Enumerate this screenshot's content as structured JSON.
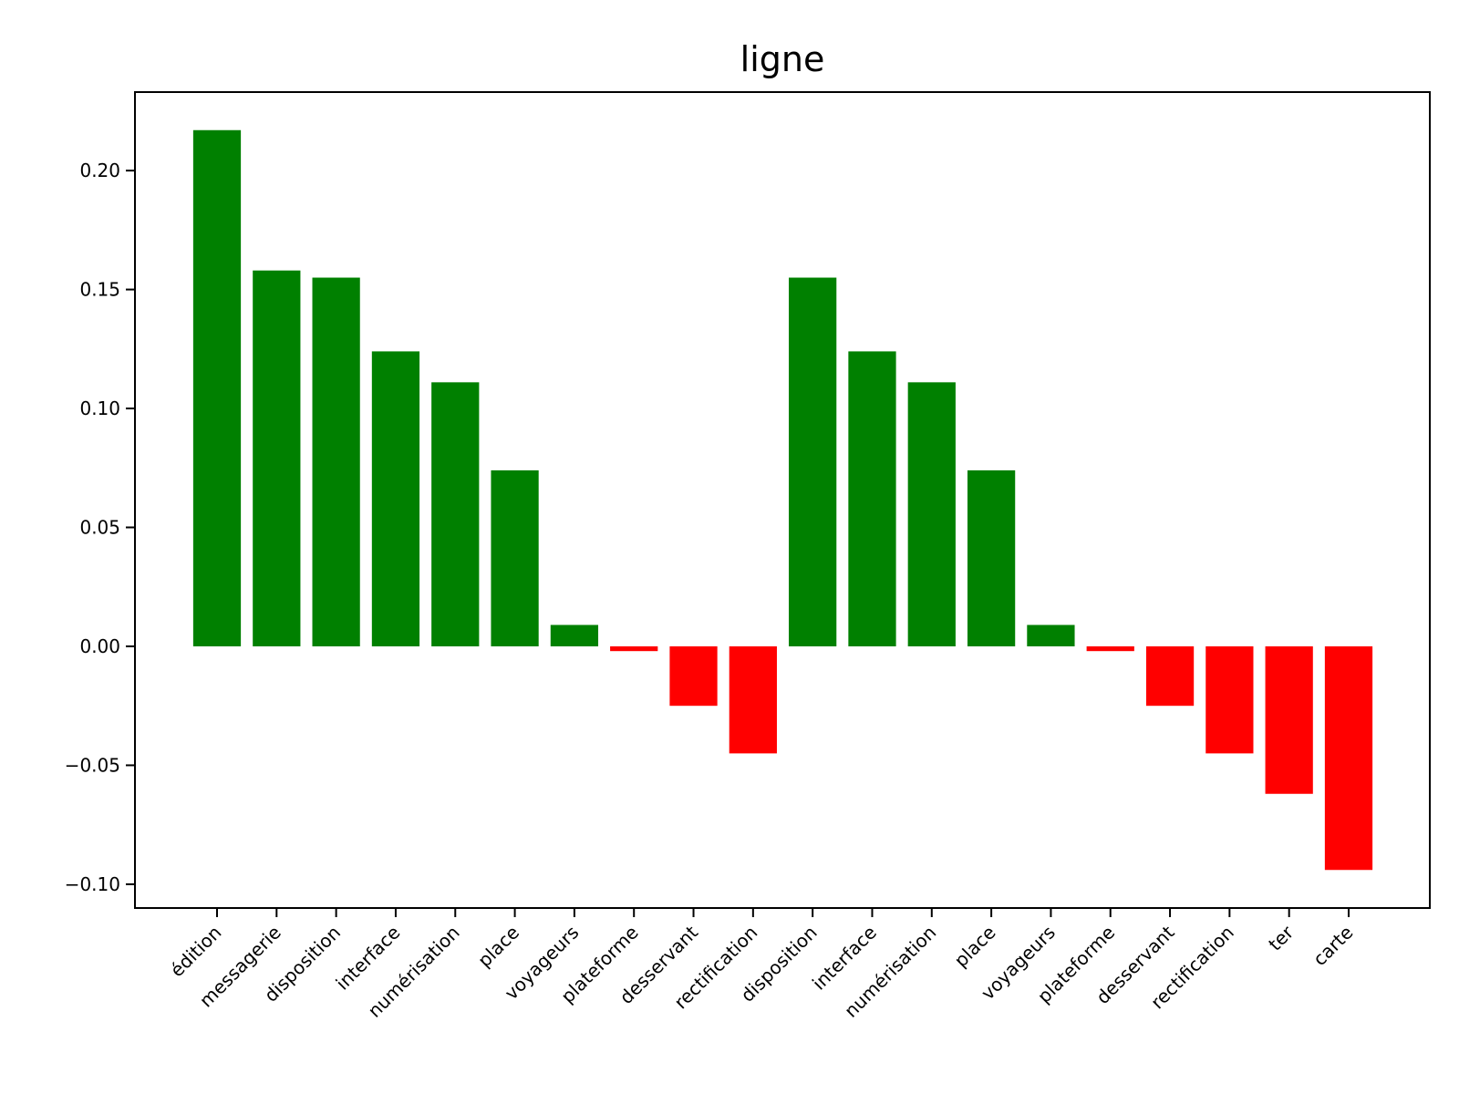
{
  "chart_data": {
    "type": "bar",
    "title": "ligne",
    "xlabel": "",
    "ylabel": "",
    "categories": [
      "édition",
      "messagerie",
      "disposition",
      "interface",
      "numérisation",
      "place",
      "voyageurs",
      "plateforme",
      "desservant",
      "rectification",
      "disposition",
      "interface",
      "numérisation",
      "place",
      "voyageurs",
      "plateforme",
      "desservant",
      "rectification",
      "ter",
      "carte"
    ],
    "values": [
      0.217,
      0.158,
      0.155,
      0.124,
      0.111,
      0.074,
      0.009,
      -0.002,
      -0.025,
      -0.045,
      0.155,
      0.124,
      0.111,
      0.074,
      0.009,
      -0.002,
      -0.025,
      -0.045,
      -0.062,
      -0.094
    ],
    "ylim": [
      -0.11,
      0.233
    ],
    "yticks": [
      -0.1,
      -0.05,
      0.0,
      0.05,
      0.1,
      0.15,
      0.2
    ],
    "ytick_labels": [
      "−0.10",
      "−0.05",
      "0.00",
      "0.05",
      "0.10",
      "0.15",
      "0.20"
    ],
    "grid": false,
    "colors": {
      "positive": "#008000",
      "negative": "#ff0000"
    }
  }
}
